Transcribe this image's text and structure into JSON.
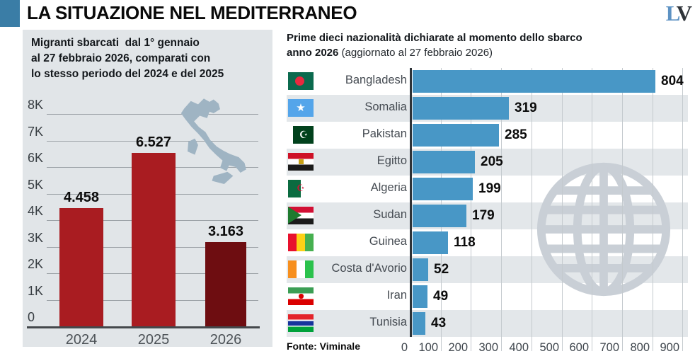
{
  "header": {
    "title": "LA SITUAZIONE NEL MEDITERRANEO",
    "logo_l": "L",
    "logo_v": "V",
    "accent_color": "#3A7DA6"
  },
  "colors": {
    "left_panel_bg": "#E1E5E8",
    "bar_red": "#A91C21",
    "bar_maroon": "#6E0D11",
    "bar_blue": "#4897C6",
    "row_alt_bg": "#E3E7EA",
    "watermark_gray": "#C9CFD6",
    "italy_map_gray": "#9FB4C3"
  },
  "chart_data": [
    {
      "type": "bar",
      "title": "Migranti sbarcati dal 1° gennaio al 27 febbraio 2026, comparati con lo stesso periodo del 2024 e del 2025",
      "title_lines": [
        "Migranti sbarcati  dal 1° gennaio",
        "al 27 febbraio 2026, comparati con",
        "lo stesso periodo del 2024 e del 2025"
      ],
      "categories": [
        "2024",
        "2025",
        "2026"
      ],
      "values": [
        4458,
        6527,
        3163
      ],
      "value_labels": [
        "4.458",
        "6.527",
        "3.163"
      ],
      "bar_colors": [
        "#A91C21",
        "#A91C21",
        "#6E0D11"
      ],
      "ylim": [
        0,
        8000
      ],
      "ytick_values": [
        0,
        1000,
        2000,
        3000,
        4000,
        5000,
        6000,
        7000,
        8000
      ],
      "ytick_labels": [
        "0",
        "1K",
        "2K",
        "3K",
        "4K",
        "5K",
        "6K",
        "7K",
        "8K"
      ],
      "grid": true,
      "decoration": "italy-map-silhouette"
    },
    {
      "type": "bar-horizontal",
      "title": "Prime dieci nazionalità dichiarate al momento dello sbarco anno 2026 (aggiornato al 27 febbraio 2026)",
      "title_line1": "Prime dieci nazionalità dichiarate al momento dello sbarco",
      "title_line2_bold": "anno 2026",
      "title_line2_regular": " (aggiornato al 27 febbraio 2026)",
      "categories": [
        "Bangladesh",
        "Somalia",
        "Pakistan",
        "Egitto",
        "Algeria",
        "Sudan",
        "Guinea",
        "Costa d'Avorio",
        "Iran",
        "Tunisia"
      ],
      "values": [
        804,
        319,
        285,
        205,
        199,
        179,
        118,
        52,
        49,
        43
      ],
      "flags": [
        "bangladesh",
        "somalia",
        "pakistan",
        "egypt",
        "algeria",
        "sudan",
        "guinea",
        "ivory-coast",
        "iran",
        "tunisia"
      ],
      "bar_color": "#4897C6",
      "xlim": [
        0,
        900
      ],
      "xticks": [
        0,
        100,
        200,
        300,
        400,
        500,
        600,
        700,
        800,
        900
      ],
      "grid": true,
      "legend": "none",
      "source": "Fonte: Viminale",
      "decoration": "globe-watermark"
    }
  ]
}
